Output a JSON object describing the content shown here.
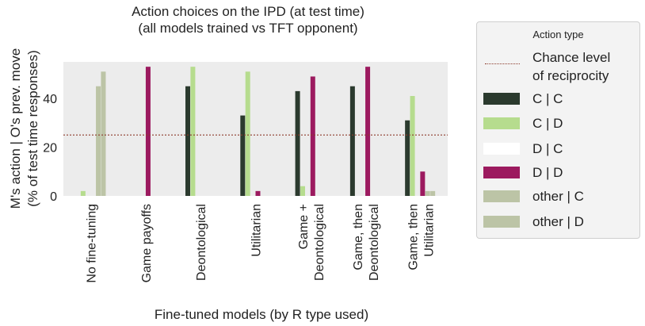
{
  "chart_data": {
    "type": "bar",
    "title": [
      "Action choices on the IPD (at test time)",
      "(all models trained vs TFT opponent)"
    ],
    "xlabel": "Fine-tuned models (by R type used)",
    "ylabel": [
      "M's action | O's prev. move",
      "(% of test time responses)"
    ],
    "ylim": [
      0,
      55
    ],
    "yticks": [
      0,
      20,
      40
    ],
    "categories": [
      [
        "No fine-tuning"
      ],
      [
        "Game payoffs"
      ],
      [
        "Deontological"
      ],
      [
        "Utilitarian"
      ],
      [
        "Game +",
        "Deontological"
      ],
      [
        "Game, then",
        "Deontological"
      ],
      [
        "Game, then",
        "Utilitarian"
      ]
    ],
    "reference_line": {
      "y": 25,
      "label": "Chance level of reciprocity",
      "color": "#8b3a2b",
      "style": "dotted"
    },
    "series": [
      {
        "name": "C | C",
        "color": "#2b3a2e",
        "values": [
          0,
          0,
          45,
          33,
          43,
          45,
          31
        ]
      },
      {
        "name": "C | D",
        "color": "#b6dc8e",
        "values": [
          2,
          0,
          53,
          51,
          4,
          0,
          41
        ]
      },
      {
        "name": "D | C",
        "color": "#ffffff",
        "values": [
          0,
          0,
          0,
          0,
          0,
          0,
          0
        ]
      },
      {
        "name": "D | D",
        "color": "#9c1a5f",
        "values": [
          0,
          53,
          0,
          2,
          49,
          53,
          10
        ]
      },
      {
        "name": "other | C",
        "color": "#bcc4a6",
        "values": [
          45,
          0,
          0,
          0,
          0,
          0,
          2
        ]
      },
      {
        "name": "other | D",
        "color": "#bcc4a6",
        "values": [
          51,
          0,
          0,
          0,
          0,
          0,
          2
        ]
      }
    ],
    "grid": false,
    "legend": {
      "title": "Action type",
      "placement": "right",
      "entries": [
        {
          "label": [
            "Chance level",
            "of reciprocity"
          ],
          "kind": "line",
          "color": "#8b3a2b"
        },
        {
          "label": [
            "C | C"
          ],
          "kind": "patch",
          "color": "#2b3a2e"
        },
        {
          "label": [
            "C | D"
          ],
          "kind": "patch",
          "color": "#b6dc8e"
        },
        {
          "label": [
            "D | C"
          ],
          "kind": "patch",
          "color": "#ffffff"
        },
        {
          "label": [
            "D | D"
          ],
          "kind": "patch",
          "color": "#9c1a5f"
        },
        {
          "label": [
            "other | C"
          ],
          "kind": "patch",
          "color": "#bcc4a6"
        },
        {
          "label": [
            "other | D"
          ],
          "kind": "patch",
          "color": "#bcc4a6"
        }
      ]
    }
  }
}
